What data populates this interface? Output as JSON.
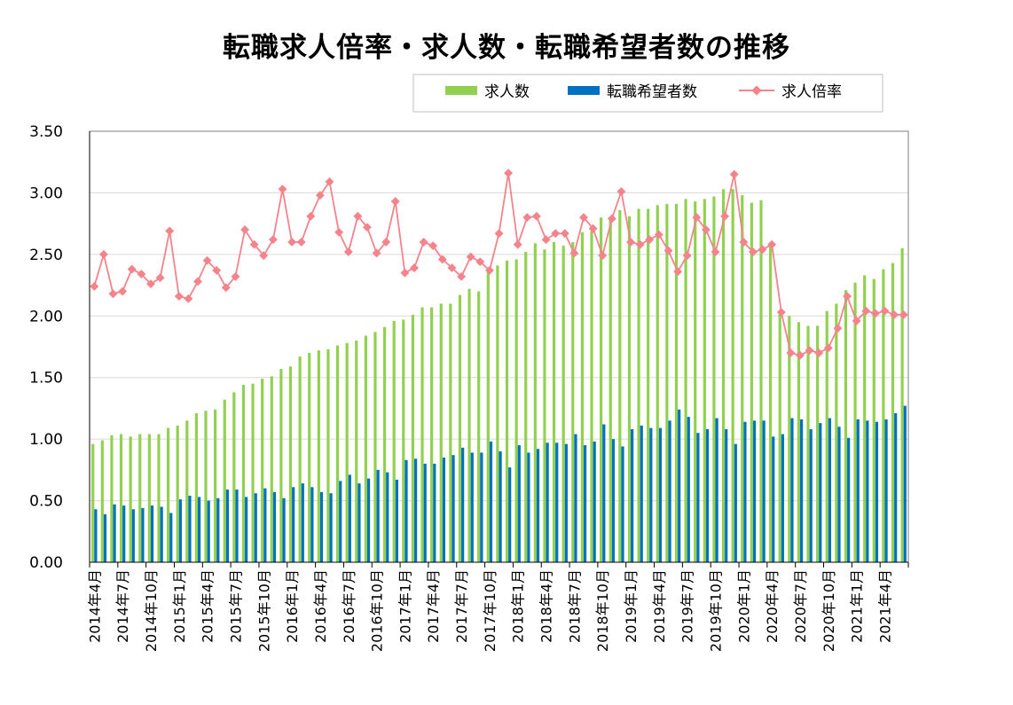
{
  "chart_data": {
    "type": "bar",
    "title": "転職求人倍率・求人数・転職希望者数の推移",
    "xlabel": "",
    "ylabel": "",
    "ylim": [
      0,
      3.5
    ],
    "yticks": [
      "0.00",
      "0.50",
      "1.00",
      "1.50",
      "2.00",
      "2.50",
      "3.00",
      "3.50"
    ],
    "legend_position": "top-right",
    "tick_labels": [
      "2014年4月",
      "2014年7月",
      "2014年10月",
      "2015年1月",
      "2015年4月",
      "2015年7月",
      "2015年10月",
      "2016年1月",
      "2016年4月",
      "2016年7月",
      "2016年10月",
      "2017年1月",
      "2017年4月",
      "2017年7月",
      "2017年10月",
      "2018年1月",
      "2018年4月",
      "2018年7月",
      "2018年10月",
      "2019年1月",
      "2019年4月",
      "2019年7月",
      "2019年10月",
      "2020年1月",
      "2020年4月",
      "2020年7月",
      "2020年10月",
      "2021年1月",
      "2021年4月"
    ],
    "categories": [
      "2014-04",
      "2014-05",
      "2014-06",
      "2014-07",
      "2014-08",
      "2014-09",
      "2014-10",
      "2014-11",
      "2014-12",
      "2015-01",
      "2015-02",
      "2015-03",
      "2015-04",
      "2015-05",
      "2015-06",
      "2015-07",
      "2015-08",
      "2015-09",
      "2015-10",
      "2015-11",
      "2015-12",
      "2016-01",
      "2016-02",
      "2016-03",
      "2016-04",
      "2016-05",
      "2016-06",
      "2016-07",
      "2016-08",
      "2016-09",
      "2016-10",
      "2016-11",
      "2016-12",
      "2017-01",
      "2017-02",
      "2017-03",
      "2017-04",
      "2017-05",
      "2017-06",
      "2017-07",
      "2017-08",
      "2017-09",
      "2017-10",
      "2017-11",
      "2017-12",
      "2018-01",
      "2018-02",
      "2018-03",
      "2018-04",
      "2018-05",
      "2018-06",
      "2018-07",
      "2018-08",
      "2018-09",
      "2018-10",
      "2018-11",
      "2018-12",
      "2019-01",
      "2019-02",
      "2019-03",
      "2019-04",
      "2019-05",
      "2019-06",
      "2019-07",
      "2019-08",
      "2019-09",
      "2019-10",
      "2019-11",
      "2019-12",
      "2020-01",
      "2020-02",
      "2020-03",
      "2020-04",
      "2020-05",
      "2020-06",
      "2020-07",
      "2020-08",
      "2020-09",
      "2020-10",
      "2020-11",
      "2020-12",
      "2021-01",
      "2021-02",
      "2021-03",
      "2021-04",
      "2021-05",
      "2021-06"
    ],
    "series": [
      {
        "name": "求人数",
        "kind": "bar",
        "color": "#92d050",
        "values": [
          0.96,
          0.99,
          1.03,
          1.04,
          1.02,
          1.04,
          1.04,
          1.04,
          1.09,
          1.11,
          1.15,
          1.21,
          1.23,
          1.24,
          1.32,
          1.38,
          1.44,
          1.45,
          1.49,
          1.51,
          1.57,
          1.59,
          1.67,
          1.7,
          1.72,
          1.73,
          1.76,
          1.78,
          1.8,
          1.84,
          1.87,
          1.91,
          1.96,
          1.97,
          2.01,
          2.07,
          2.07,
          2.1,
          2.1,
          2.17,
          2.22,
          2.2,
          2.36,
          2.41,
          2.45,
          2.46,
          2.52,
          2.59,
          2.54,
          2.6,
          2.57,
          2.6,
          2.68,
          2.69,
          2.8,
          2.8,
          2.86,
          2.81,
          2.87,
          2.87,
          2.9,
          2.91,
          2.91,
          2.95,
          2.93,
          2.95,
          2.97,
          3.03,
          3.03,
          2.98,
          2.92,
          2.94,
          2.58,
          2.02,
          2.0,
          1.95,
          1.92,
          1.92,
          2.04,
          2.1,
          2.21,
          2.27,
          2.33,
          2.3,
          2.38,
          2.43,
          2.55
        ]
      },
      {
        "name": "転職希望者数",
        "kind": "bar",
        "color": "#0070c0",
        "values": [
          0.43,
          0.39,
          0.47,
          0.46,
          0.43,
          0.44,
          0.46,
          0.45,
          0.4,
          0.51,
          0.54,
          0.53,
          0.5,
          0.52,
          0.59,
          0.59,
          0.53,
          0.56,
          0.6,
          0.57,
          0.52,
          0.61,
          0.64,
          0.61,
          0.57,
          0.56,
          0.66,
          0.71,
          0.64,
          0.68,
          0.75,
          0.73,
          0.67,
          0.83,
          0.84,
          0.8,
          0.8,
          0.85,
          0.87,
          0.93,
          0.89,
          0.89,
          0.98,
          0.9,
          0.77,
          0.95,
          0.89,
          0.92,
          0.97,
          0.97,
          0.96,
          1.04,
          0.95,
          0.98,
          1.12,
          1.0,
          0.94,
          1.08,
          1.11,
          1.09,
          1.09,
          1.15,
          1.24,
          1.18,
          1.05,
          1.08,
          1.17,
          1.08,
          0.96,
          1.14,
          1.15,
          1.15,
          1.02,
          1.04,
          1.17,
          1.16,
          1.08,
          1.13,
          1.17,
          1.1,
          1.01,
          1.16,
          1.15,
          1.14,
          1.16,
          1.21,
          1.27
        ]
      },
      {
        "name": "求人倍率",
        "kind": "line",
        "color": "#f4838b",
        "values": [
          2.24,
          2.5,
          2.18,
          2.2,
          2.38,
          2.34,
          2.26,
          2.31,
          2.69,
          2.16,
          2.14,
          2.28,
          2.45,
          2.37,
          2.23,
          2.32,
          2.7,
          2.58,
          2.49,
          2.62,
          3.03,
          2.6,
          2.6,
          2.81,
          2.98,
          3.09,
          2.68,
          2.52,
          2.81,
          2.72,
          2.51,
          2.6,
          2.93,
          2.35,
          2.39,
          2.6,
          2.57,
          2.46,
          2.39,
          2.32,
          2.48,
          2.44,
          2.37,
          2.67,
          3.16,
          2.58,
          2.8,
          2.81,
          2.62,
          2.67,
          2.67,
          2.51,
          2.8,
          2.71,
          2.49,
          2.79,
          3.01,
          2.6,
          2.58,
          2.62,
          2.66,
          2.53,
          2.36,
          2.49,
          2.8,
          2.7,
          2.52,
          2.81,
          3.15,
          2.6,
          2.52,
          2.54,
          2.58,
          2.03,
          1.7,
          1.68,
          1.72,
          1.7,
          1.74,
          1.9,
          2.16,
          1.96,
          2.04,
          2.02,
          2.04,
          2.01,
          2.01
        ]
      }
    ]
  }
}
